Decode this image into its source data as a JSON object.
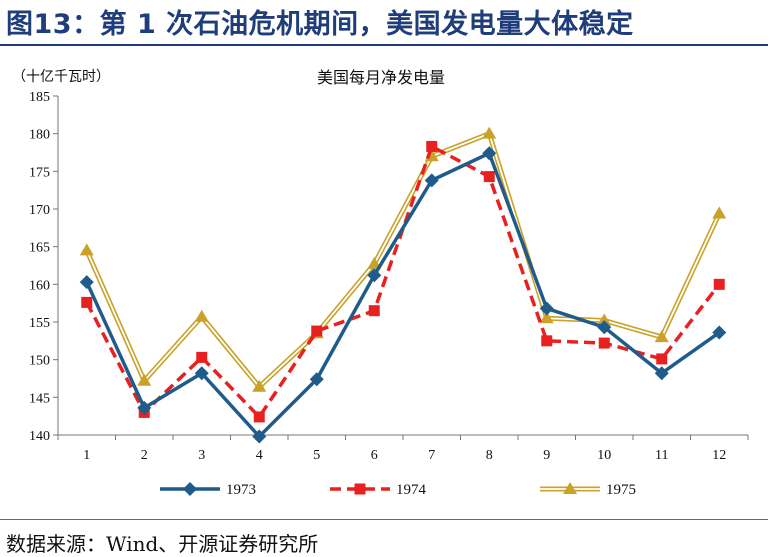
{
  "figure_title": "图13：第 1 次石油危机期间，美国发电量大体稳定",
  "source": "数据来源：Wind、开源证券研究所",
  "chart_data": {
    "type": "line",
    "title": "美国每月净发电量",
    "unit_label": "（十亿千瓦时）",
    "categories": [
      "1",
      "2",
      "3",
      "4",
      "5",
      "6",
      "7",
      "8",
      "9",
      "10",
      "11",
      "12"
    ],
    "ylim": [
      140,
      185
    ],
    "yticks": [
      140,
      145,
      150,
      155,
      160,
      165,
      170,
      175,
      180,
      185
    ],
    "grid": false,
    "legend_position": "bottom",
    "series": [
      {
        "name": "1973",
        "color": "#1f5c8c",
        "style": "solid",
        "marker": "diamond",
        "values": [
          160.3,
          143.6,
          148.2,
          139.8,
          147.4,
          161.2,
          173.8,
          177.4,
          156.8,
          154.3,
          148.2,
          153.6
        ]
      },
      {
        "name": "1974",
        "color": "#e8201f",
        "style": "dashed",
        "marker": "square",
        "values": [
          157.6,
          143.0,
          150.3,
          142.4,
          153.8,
          156.5,
          178.3,
          174.3,
          152.5,
          152.2,
          150.1,
          160.0
        ]
      },
      {
        "name": "1975",
        "color": "#c9a227",
        "style": "double",
        "marker": "triangle",
        "values": [
          164.5,
          147.2,
          155.7,
          146.4,
          153.5,
          162.7,
          177.0,
          180.0,
          155.5,
          155.2,
          153.0,
          169.4
        ]
      }
    ]
  }
}
